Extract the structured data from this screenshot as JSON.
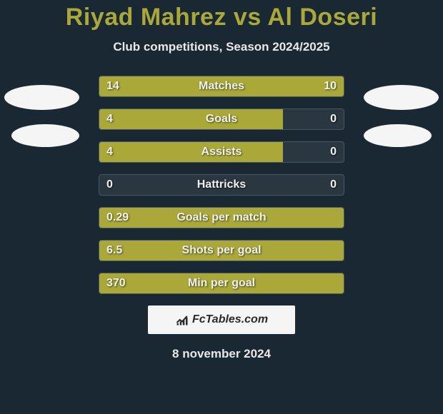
{
  "title": "Riyad Mahrez vs Al Doseri",
  "subtitle": "Club competitions, Season 2024/2025",
  "date": "8 november 2024",
  "logo_text": "FcTables.com",
  "colors": {
    "background": "#1a2833",
    "bar_fill": "#a9a839",
    "bar_track": "#2a3640",
    "bar_border": "#4a5560",
    "title_color": "#a9a839",
    "text_color": "#e8e8e8",
    "avatar_color": "#f5f5f5",
    "logo_bg": "#f5f5f5"
  },
  "stats": [
    {
      "label": "Matches",
      "left_val": "14",
      "right_val": "10",
      "left_pct": 58,
      "right_pct": 42
    },
    {
      "label": "Goals",
      "left_val": "4",
      "right_val": "0",
      "left_pct": 75,
      "right_pct": 0
    },
    {
      "label": "Assists",
      "left_val": "4",
      "right_val": "0",
      "left_pct": 75,
      "right_pct": 0
    },
    {
      "label": "Hattricks",
      "left_val": "0",
      "right_val": "0",
      "left_pct": 0,
      "right_pct": 0
    },
    {
      "label": "Goals per match",
      "left_val": "0.29",
      "right_val": "",
      "left_pct": 100,
      "right_pct": 0
    },
    {
      "label": "Shots per goal",
      "left_val": "6.5",
      "right_val": "",
      "left_pct": 100,
      "right_pct": 0
    },
    {
      "label": "Min per goal",
      "left_val": "370",
      "right_val": "",
      "left_pct": 100,
      "right_pct": 0
    }
  ]
}
